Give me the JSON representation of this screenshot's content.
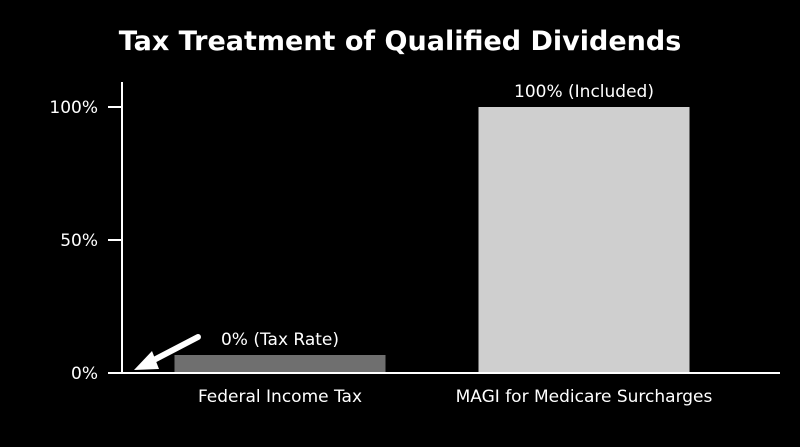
{
  "chart_data": {
    "type": "bar",
    "title": "Tax Treatment of Qualified Dividends",
    "xlabel": "",
    "ylabel": "",
    "categories": [
      "Federal Income Tax",
      "MAGI for Medicare Surcharges"
    ],
    "values": [
      0,
      100
    ],
    "data_labels": [
      "0% (Tax Rate)",
      "100% (Included)"
    ],
    "ylim": [
      0,
      100
    ],
    "yticks": [
      0,
      50,
      100
    ],
    "ytick_labels": [
      "0%",
      "50%",
      "100%"
    ],
    "grid": false,
    "legend": "none",
    "annotation": {
      "type": "arrow",
      "points_to": "0% (Tax Rate)"
    },
    "colors": {
      "background": "#000000",
      "text": "#ffffff",
      "axis": "#ffffff",
      "bars": [
        "#6f6f6f",
        "#cfcfcf"
      ],
      "arrow": "#ffffff"
    }
  }
}
